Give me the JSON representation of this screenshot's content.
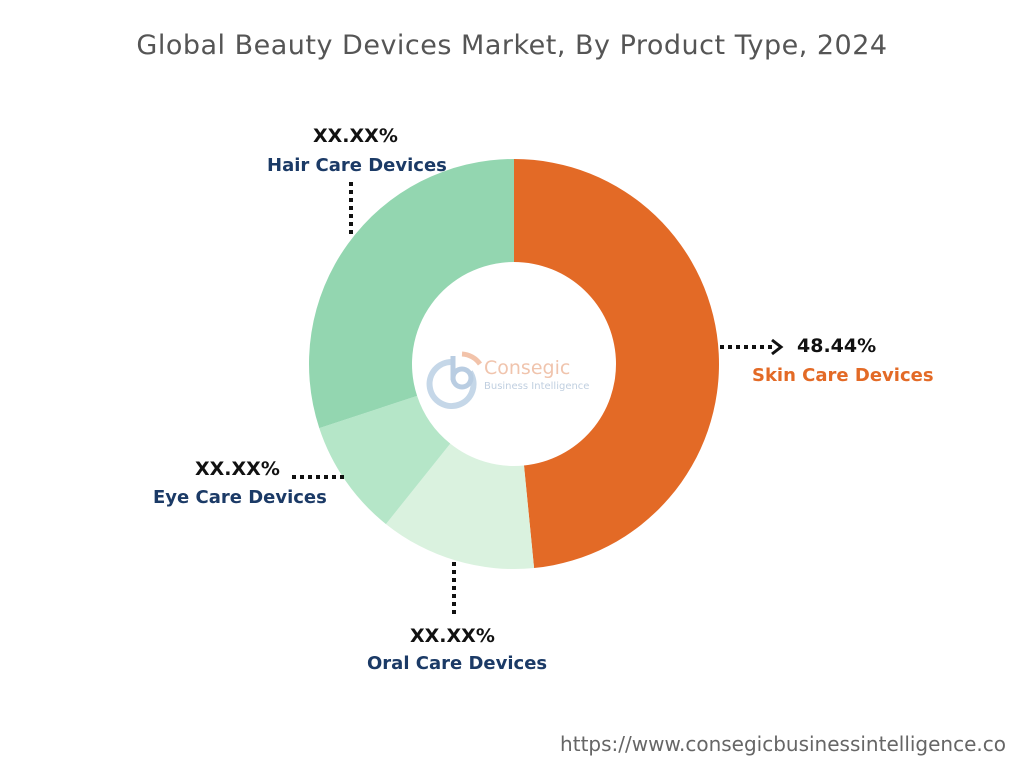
{
  "chart_data": {
    "type": "pie",
    "variant": "donut",
    "title": "Global Beauty Devices Market, By Product Type, 2024",
    "categories": [
      "Skin Care Devices",
      "Oral Care Devices",
      "Eye Care Devices",
      "Hair Care Devices"
    ],
    "values": [
      48.44,
      12.3,
      9.2,
      30.06
    ],
    "display_labels": [
      "48.44%",
      "XX.XX%",
      "XX.XX%",
      "XX.XX%"
    ],
    "colors": [
      "#E36A26",
      "#DAF2DF",
      "#B5E6C8",
      "#93D6B0"
    ],
    "legend": "none"
  },
  "logo": {
    "name": "Consegic",
    "tagline": "Business Intelligence"
  },
  "footer": {
    "url": "https://www.consegicbusinessintelligence.co"
  }
}
